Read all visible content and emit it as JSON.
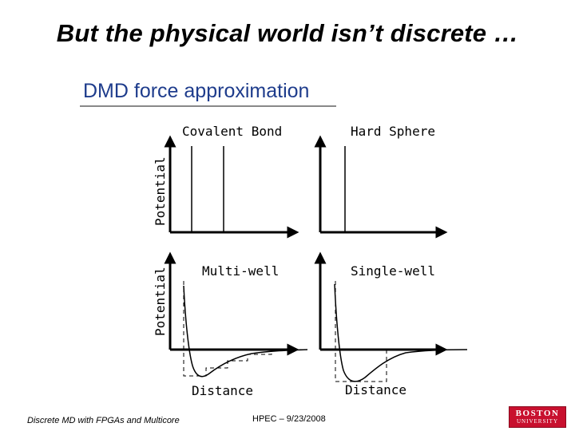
{
  "title": "But the physical world isn’t discrete …",
  "subtitle": "DMD force approximation",
  "panels": {
    "covalent": "Covalent Bond",
    "hard_sphere": "Hard Sphere",
    "multi_well": "Multi-well",
    "single_well": "Single-well"
  },
  "axis_labels": {
    "potential_top": "Potential",
    "potential_bottom": "Potential",
    "distance_left": "Distance",
    "distance_right": "Distance"
  },
  "footer": {
    "left": "Discrete MD with FPGAs and Multicore",
    "center": "HPEC  –  9/23/2008",
    "logo_line1": "BOSTON",
    "logo_line2": "UNIVERSITY"
  },
  "colors": {
    "subtitle": "#1e3c8c",
    "logo": "#c8102e"
  }
}
